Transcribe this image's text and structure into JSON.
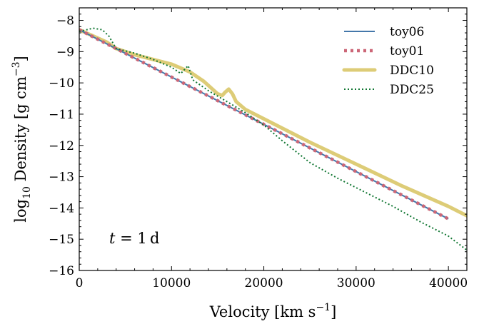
{
  "chart_data": {
    "type": "line",
    "xlabel": "Velocity [km s",
    "xlabel_sup": "−1",
    "xlabel_end": "]",
    "ylabel_pre": "log",
    "ylabel_sub": "10",
    "ylabel_mid": " Density [g cm",
    "ylabel_sup": "−3",
    "ylabel_end": "]",
    "xlim": [
      0,
      42000
    ],
    "ylim": [
      -16,
      -7.6
    ],
    "xticks": [
      0,
      10000,
      20000,
      30000,
      40000
    ],
    "xtick_labels": [
      "0",
      "10000",
      "20000",
      "30000",
      "40000"
    ],
    "yticks": [
      -16,
      -15,
      -14,
      -13,
      -12,
      -11,
      -10,
      -9,
      -8
    ],
    "ytick_labels": [
      "−16",
      "−15",
      "−14",
      "−13",
      "−12",
      "−11",
      "−10",
      "−9",
      "−8"
    ],
    "annotation": {
      "italic": "t",
      "text": " = 1 d"
    },
    "legend_position": "top-right",
    "series": [
      {
        "name": "toy06",
        "color": "#4477aa",
        "style": "solid",
        "points": [
          [
            0,
            -8.3
          ],
          [
            40000,
            -14.35
          ]
        ]
      },
      {
        "name": "toy01",
        "color": "#cc6677",
        "style": "dotted-thick",
        "points": [
          [
            0,
            -8.3
          ],
          [
            40000,
            -14.35
          ]
        ]
      },
      {
        "name": "DDC10",
        "color": "#ddcc77",
        "style": "solid-thick",
        "points": [
          [
            0,
            -8.3
          ],
          [
            1500,
            -8.5
          ],
          [
            3000,
            -8.7
          ],
          [
            4000,
            -8.9
          ],
          [
            6000,
            -9.1
          ],
          [
            8000,
            -9.25
          ],
          [
            10000,
            -9.4
          ],
          [
            12000,
            -9.65
          ],
          [
            13500,
            -9.95
          ],
          [
            15000,
            -10.35
          ],
          [
            15500,
            -10.4
          ],
          [
            15800,
            -10.3
          ],
          [
            16200,
            -10.2
          ],
          [
            16600,
            -10.35
          ],
          [
            17000,
            -10.6
          ],
          [
            18000,
            -10.85
          ],
          [
            20000,
            -11.15
          ],
          [
            25000,
            -11.9
          ],
          [
            30000,
            -12.6
          ],
          [
            35000,
            -13.3
          ],
          [
            40000,
            -13.95
          ],
          [
            42000,
            -14.25
          ]
        ]
      },
      {
        "name": "DDC25",
        "color": "#117733",
        "style": "dotted",
        "points": [
          [
            0,
            -8.35
          ],
          [
            800,
            -8.3
          ],
          [
            1500,
            -8.25
          ],
          [
            2500,
            -8.3
          ],
          [
            3200,
            -8.5
          ],
          [
            4000,
            -8.9
          ],
          [
            6000,
            -9.05
          ],
          [
            8000,
            -9.25
          ],
          [
            10000,
            -9.5
          ],
          [
            11000,
            -9.7
          ],
          [
            11800,
            -9.45
          ],
          [
            12300,
            -9.9
          ],
          [
            14000,
            -10.25
          ],
          [
            16000,
            -10.6
          ],
          [
            18000,
            -10.95
          ],
          [
            20000,
            -11.35
          ],
          [
            22000,
            -11.85
          ],
          [
            25000,
            -12.55
          ],
          [
            28000,
            -13.05
          ],
          [
            31000,
            -13.5
          ],
          [
            34000,
            -13.95
          ],
          [
            37000,
            -14.45
          ],
          [
            40000,
            -14.9
          ],
          [
            42000,
            -15.35
          ]
        ]
      }
    ]
  }
}
